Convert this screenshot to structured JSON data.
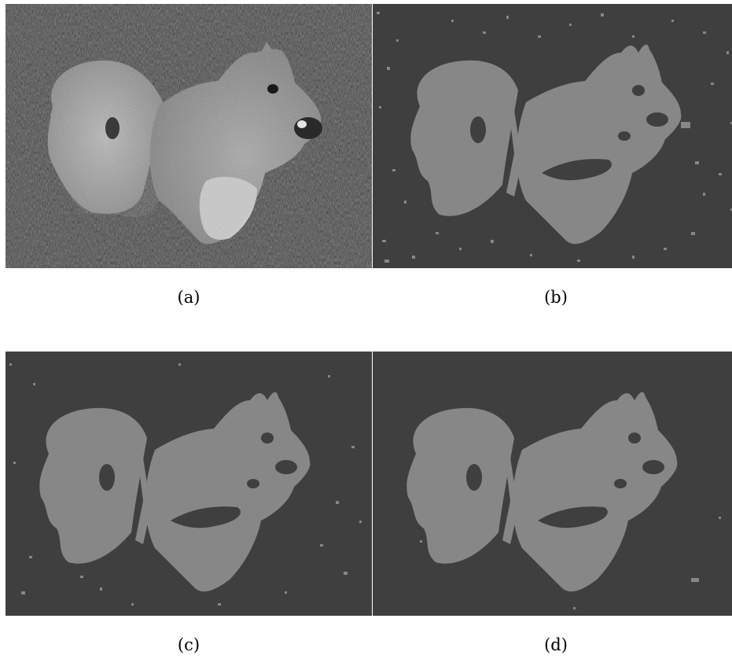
{
  "figure": {
    "panels": [
      {
        "id": "a",
        "caption": "(a)",
        "kind": "grayscale-photo",
        "subject": "squirrel-on-grass"
      },
      {
        "id": "b",
        "caption": "(b)",
        "kind": "segmentation",
        "noise_level": "high"
      },
      {
        "id": "c",
        "caption": "(c)",
        "kind": "segmentation",
        "noise_level": "medium"
      },
      {
        "id": "d",
        "caption": "(d)",
        "kind": "segmentation",
        "noise_level": "low"
      }
    ],
    "colors": {
      "background_label": "#3f3f3f",
      "foreground_label": "#878787",
      "page": "#ffffff"
    }
  }
}
